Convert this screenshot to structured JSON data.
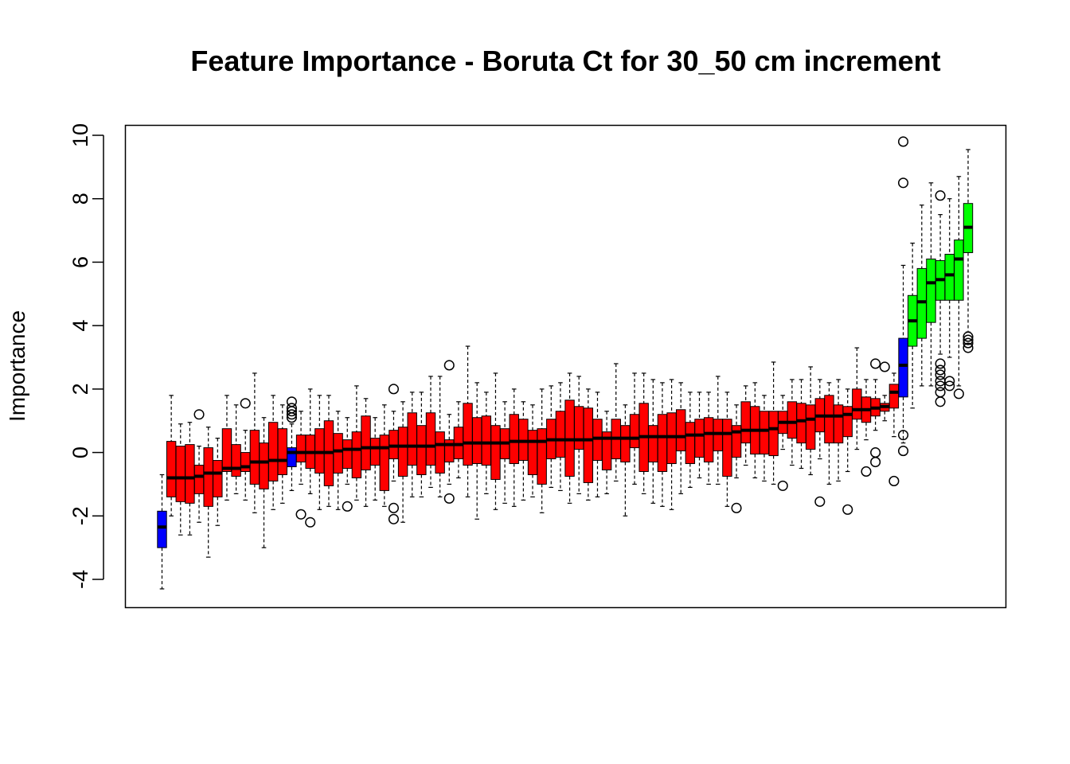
{
  "chart_data": {
    "type": "boxplot",
    "title": "Feature Importance - Boruta Ct for 30_50 cm increment",
    "xlabel": "",
    "ylabel": "Importance",
    "ylim": [
      -4.9,
      10.3
    ],
    "yticks": [
      -4,
      -2,
      0,
      2,
      4,
      6,
      8,
      10
    ],
    "grid": false,
    "legend": "none",
    "colors": {
      "rejected": "#ff0000",
      "shadow": "#0000ff",
      "confirmed": "#00ff00"
    },
    "boxes": [
      {
        "q1": -3.0,
        "median": -2.35,
        "q3": -1.85,
        "lower": -4.3,
        "upper": -0.7,
        "group": "shadow",
        "outliers": []
      },
      {
        "q1": -1.4,
        "median": -0.8,
        "q3": 0.35,
        "lower": -2.0,
        "upper": 1.8,
        "group": "rejected",
        "outliers": []
      },
      {
        "q1": -1.55,
        "median": -0.8,
        "q3": 0.2,
        "lower": -2.6,
        "upper": 0.9,
        "group": "rejected",
        "outliers": []
      },
      {
        "q1": -1.6,
        "median": -0.8,
        "q3": 0.25,
        "lower": -2.6,
        "upper": 0.95,
        "group": "rejected",
        "outliers": []
      },
      {
        "q1": -1.3,
        "median": -0.75,
        "q3": -0.4,
        "lower": -2.2,
        "upper": 0.2,
        "group": "rejected",
        "outliers": [
          1.2
        ]
      },
      {
        "q1": -1.7,
        "median": -0.65,
        "q3": 0.15,
        "lower": -3.3,
        "upper": 0.8,
        "group": "rejected",
        "outliers": []
      },
      {
        "q1": -1.4,
        "median": -0.65,
        "q3": -0.25,
        "lower": -2.3,
        "upper": 0.45,
        "group": "rejected",
        "outliers": []
      },
      {
        "q1": -0.6,
        "median": -0.5,
        "q3": 0.75,
        "lower": -1.5,
        "upper": 1.8,
        "group": "rejected",
        "outliers": []
      },
      {
        "q1": -0.75,
        "median": -0.5,
        "q3": 0.25,
        "lower": -1.3,
        "upper": 1.5,
        "group": "rejected",
        "outliers": []
      },
      {
        "q1": -0.6,
        "median": -0.45,
        "q3": 0.0,
        "lower": -1.5,
        "upper": 0.7,
        "group": "rejected",
        "outliers": [
          1.55
        ]
      },
      {
        "q1": -1.0,
        "median": -0.3,
        "q3": 0.7,
        "lower": -1.9,
        "upper": 2.5,
        "group": "rejected",
        "outliers": []
      },
      {
        "q1": -1.15,
        "median": -0.3,
        "q3": 0.3,
        "lower": -3.0,
        "upper": 1.1,
        "group": "rejected",
        "outliers": []
      },
      {
        "q1": -0.9,
        "median": -0.25,
        "q3": 0.95,
        "lower": -1.8,
        "upper": 1.8,
        "group": "rejected",
        "outliers": []
      },
      {
        "q1": -0.7,
        "median": -0.25,
        "q3": 0.75,
        "lower": -1.6,
        "upper": 1.5,
        "group": "rejected",
        "outliers": []
      },
      {
        "q1": -0.45,
        "median": 0.0,
        "q3": 0.15,
        "lower": -1.2,
        "upper": 0.9,
        "group": "shadow",
        "outliers": [
          1.6,
          1.4,
          1.3,
          1.2,
          1.1
        ]
      },
      {
        "q1": -0.3,
        "median": 0.0,
        "q3": 0.55,
        "lower": -1.0,
        "upper": 1.3,
        "group": "rejected",
        "outliers": [
          -1.95
        ]
      },
      {
        "q1": -0.5,
        "median": 0.0,
        "q3": 0.55,
        "lower": -1.3,
        "upper": 2.0,
        "group": "rejected",
        "outliers": [
          -2.2
        ]
      },
      {
        "q1": -0.65,
        "median": 0.0,
        "q3": 0.75,
        "lower": -1.8,
        "upper": 1.8,
        "group": "rejected",
        "outliers": []
      },
      {
        "q1": -1.05,
        "median": 0.0,
        "q3": 1.0,
        "lower": -1.7,
        "upper": 1.8,
        "group": "rejected",
        "outliers": []
      },
      {
        "q1": -0.65,
        "median": 0.05,
        "q3": 0.6,
        "lower": -1.8,
        "upper": 1.3,
        "group": "rejected",
        "outliers": []
      },
      {
        "q1": -0.5,
        "median": 0.1,
        "q3": 0.4,
        "lower": -1.0,
        "upper": 1.1,
        "group": "rejected",
        "outliers": [
          -1.7
        ]
      },
      {
        "q1": -0.8,
        "median": 0.1,
        "q3": 0.65,
        "lower": -1.5,
        "upper": 2.1,
        "group": "rejected",
        "outliers": []
      },
      {
        "q1": -0.55,
        "median": 0.15,
        "q3": 1.15,
        "lower": -1.7,
        "upper": 1.7,
        "group": "rejected",
        "outliers": []
      },
      {
        "q1": -0.4,
        "median": 0.15,
        "q3": 0.45,
        "lower": -1.5,
        "upper": 1.1,
        "group": "rejected",
        "outliers": []
      },
      {
        "q1": -1.2,
        "median": 0.15,
        "q3": 0.55,
        "lower": -1.7,
        "upper": 1.5,
        "group": "rejected",
        "outliers": []
      },
      {
        "q1": -0.2,
        "median": 0.2,
        "q3": 0.7,
        "lower": -0.9,
        "upper": 1.3,
        "group": "rejected",
        "outliers": [
          2.0,
          -1.75,
          -2.1
        ]
      },
      {
        "q1": -0.75,
        "median": 0.2,
        "q3": 0.8,
        "lower": -2.2,
        "upper": 1.6,
        "group": "rejected",
        "outliers": []
      },
      {
        "q1": -0.4,
        "median": 0.2,
        "q3": 1.25,
        "lower": -1.4,
        "upper": 1.9,
        "group": "rejected",
        "outliers": []
      },
      {
        "q1": -0.7,
        "median": 0.2,
        "q3": 0.85,
        "lower": -1.4,
        "upper": 1.9,
        "group": "rejected",
        "outliers": []
      },
      {
        "q1": -0.4,
        "median": 0.2,
        "q3": 1.25,
        "lower": -1.1,
        "upper": 2.4,
        "group": "rejected",
        "outliers": []
      },
      {
        "q1": -0.65,
        "median": 0.25,
        "q3": 0.65,
        "lower": -1.4,
        "upper": 2.4,
        "group": "rejected",
        "outliers": []
      },
      {
        "q1": -0.3,
        "median": 0.25,
        "q3": 0.4,
        "lower": -1.0,
        "upper": 1.2,
        "group": "rejected",
        "outliers": [
          2.75,
          -1.45
        ]
      },
      {
        "q1": -0.2,
        "median": 0.25,
        "q3": 0.8,
        "lower": -0.8,
        "upper": 1.6,
        "group": "rejected",
        "outliers": []
      },
      {
        "q1": -0.4,
        "median": 0.3,
        "q3": 1.55,
        "lower": -1.4,
        "upper": 3.35,
        "group": "rejected",
        "outliers": []
      },
      {
        "q1": -0.35,
        "median": 0.3,
        "q3": 1.1,
        "lower": -2.1,
        "upper": 2.2,
        "group": "rejected",
        "outliers": []
      },
      {
        "q1": -0.4,
        "median": 0.3,
        "q3": 1.15,
        "lower": -1.3,
        "upper": 1.9,
        "group": "rejected",
        "outliers": []
      },
      {
        "q1": -0.85,
        "median": 0.3,
        "q3": 0.85,
        "lower": -1.8,
        "upper": 2.5,
        "group": "rejected",
        "outliers": []
      },
      {
        "q1": -0.2,
        "median": 0.3,
        "q3": 0.75,
        "lower": -1.6,
        "upper": 1.6,
        "group": "rejected",
        "outliers": []
      },
      {
        "q1": -0.35,
        "median": 0.35,
        "q3": 1.2,
        "lower": -1.7,
        "upper": 2.0,
        "group": "rejected",
        "outliers": []
      },
      {
        "q1": -0.25,
        "median": 0.35,
        "q3": 1.05,
        "lower": -1.5,
        "upper": 1.6,
        "group": "rejected",
        "outliers": []
      },
      {
        "q1": -0.7,
        "median": 0.35,
        "q3": 0.7,
        "lower": -1.4,
        "upper": 1.5,
        "group": "rejected",
        "outliers": []
      },
      {
        "q1": -1.0,
        "median": 0.35,
        "q3": 0.75,
        "lower": -1.9,
        "upper": 2.0,
        "group": "rejected",
        "outliers": []
      },
      {
        "q1": -0.2,
        "median": 0.4,
        "q3": 1.05,
        "lower": -1.1,
        "upper": 2.1,
        "group": "rejected",
        "outliers": []
      },
      {
        "q1": -0.15,
        "median": 0.4,
        "q3": 1.3,
        "lower": -1.2,
        "upper": 2.2,
        "group": "rejected",
        "outliers": []
      },
      {
        "q1": -0.75,
        "median": 0.4,
        "q3": 1.65,
        "lower": -1.6,
        "upper": 2.5,
        "group": "rejected",
        "outliers": []
      },
      {
        "q1": 0.1,
        "median": 0.4,
        "q3": 1.45,
        "lower": -1.3,
        "upper": 2.4,
        "group": "rejected",
        "outliers": []
      },
      {
        "q1": -0.95,
        "median": 0.4,
        "q3": 1.4,
        "lower": -1.5,
        "upper": 2.0,
        "group": "rejected",
        "outliers": []
      },
      {
        "q1": -0.25,
        "median": 0.45,
        "q3": 1.05,
        "lower": -1.4,
        "upper": 1.9,
        "group": "rejected",
        "outliers": []
      },
      {
        "q1": -0.55,
        "median": 0.45,
        "q3": 0.65,
        "lower": -1.3,
        "upper": 1.3,
        "group": "rejected",
        "outliers": []
      },
      {
        "q1": -0.2,
        "median": 0.45,
        "q3": 1.05,
        "lower": -0.9,
        "upper": 2.8,
        "group": "rejected",
        "outliers": []
      },
      {
        "q1": -0.3,
        "median": 0.45,
        "q3": 0.85,
        "lower": -2.0,
        "upper": 1.5,
        "group": "rejected",
        "outliers": []
      },
      {
        "q1": 0.15,
        "median": 0.45,
        "q3": 1.2,
        "lower": -1.0,
        "upper": 2.5,
        "group": "rejected",
        "outliers": []
      },
      {
        "q1": -0.6,
        "median": 0.5,
        "q3": 1.55,
        "lower": -1.3,
        "upper": 2.5,
        "group": "rejected",
        "outliers": []
      },
      {
        "q1": -0.3,
        "median": 0.5,
        "q3": 0.85,
        "lower": -1.6,
        "upper": 2.3,
        "group": "rejected",
        "outliers": []
      },
      {
        "q1": -0.6,
        "median": 0.5,
        "q3": 1.2,
        "lower": -1.7,
        "upper": 2.2,
        "group": "rejected",
        "outliers": []
      },
      {
        "q1": -0.35,
        "median": 0.5,
        "q3": 1.25,
        "lower": -1.8,
        "upper": 2.3,
        "group": "rejected",
        "outliers": []
      },
      {
        "q1": 0.05,
        "median": 0.5,
        "q3": 1.35,
        "lower": -1.3,
        "upper": 2.2,
        "group": "rejected",
        "outliers": []
      },
      {
        "q1": -0.35,
        "median": 0.55,
        "q3": 0.95,
        "lower": -1.1,
        "upper": 1.9,
        "group": "rejected",
        "outliers": []
      },
      {
        "q1": -0.15,
        "median": 0.55,
        "q3": 1.05,
        "lower": -0.8,
        "upper": 1.9,
        "group": "rejected",
        "outliers": []
      },
      {
        "q1": -0.3,
        "median": 0.6,
        "q3": 1.1,
        "lower": -1.0,
        "upper": 1.9,
        "group": "rejected",
        "outliers": []
      },
      {
        "q1": 0.05,
        "median": 0.6,
        "q3": 1.05,
        "lower": -1.0,
        "upper": 2.4,
        "group": "rejected",
        "outliers": []
      },
      {
        "q1": -0.75,
        "median": 0.6,
        "q3": 1.05,
        "lower": -1.7,
        "upper": 1.9,
        "group": "rejected",
        "outliers": []
      },
      {
        "q1": -0.15,
        "median": 0.65,
        "q3": 0.85,
        "lower": -0.8,
        "upper": 1.5,
        "group": "rejected",
        "outliers": [
          -1.75
        ]
      },
      {
        "q1": 0.3,
        "median": 0.7,
        "q3": 1.6,
        "lower": -0.4,
        "upper": 2.1,
        "group": "rejected",
        "outliers": []
      },
      {
        "q1": -0.05,
        "median": 0.7,
        "q3": 1.45,
        "lower": -0.8,
        "upper": 2.2,
        "group": "rejected",
        "outliers": []
      },
      {
        "q1": -0.05,
        "median": 0.7,
        "q3": 1.3,
        "lower": -0.9,
        "upper": 1.8,
        "group": "rejected",
        "outliers": []
      },
      {
        "q1": -0.1,
        "median": 0.75,
        "q3": 1.3,
        "lower": -1.0,
        "upper": 2.85,
        "group": "rejected",
        "outliers": []
      },
      {
        "q1": 0.6,
        "median": 0.95,
        "q3": 1.3,
        "lower": 0.1,
        "upper": 1.8,
        "group": "rejected",
        "outliers": [
          -1.05
        ]
      },
      {
        "q1": 0.45,
        "median": 0.95,
        "q3": 1.6,
        "lower": -0.4,
        "upper": 2.3,
        "group": "rejected",
        "outliers": []
      },
      {
        "q1": 0.3,
        "median": 1.0,
        "q3": 1.55,
        "lower": -0.5,
        "upper": 2.3,
        "group": "rejected",
        "outliers": []
      },
      {
        "q1": 0.1,
        "median": 1.05,
        "q3": 1.5,
        "lower": -0.7,
        "upper": 2.7,
        "group": "rejected",
        "outliers": []
      },
      {
        "q1": 0.65,
        "median": 1.15,
        "q3": 1.7,
        "lower": -0.2,
        "upper": 2.3,
        "group": "rejected",
        "outliers": [
          -1.55
        ]
      },
      {
        "q1": 0.3,
        "median": 1.15,
        "q3": 1.8,
        "lower": -1.0,
        "upper": 2.2,
        "group": "rejected",
        "outliers": []
      },
      {
        "q1": 0.3,
        "median": 1.15,
        "q3": 1.5,
        "lower": -0.9,
        "upper": 2.3,
        "group": "rejected",
        "outliers": []
      },
      {
        "q1": 0.5,
        "median": 1.2,
        "q3": 1.45,
        "lower": -0.6,
        "upper": 2.0,
        "group": "rejected",
        "outliers": [
          -1.8
        ]
      },
      {
        "q1": 1.05,
        "median": 1.35,
        "q3": 2.0,
        "lower": 0.1,
        "upper": 3.3,
        "group": "rejected",
        "outliers": []
      },
      {
        "q1": 0.95,
        "median": 1.35,
        "q3": 1.75,
        "lower": 0.4,
        "upper": 2.3,
        "group": "rejected",
        "outliers": [
          -0.6
        ]
      },
      {
        "q1": 1.15,
        "median": 1.4,
        "q3": 1.7,
        "lower": 0.7,
        "upper": 2.3,
        "group": "rejected",
        "outliers": [
          2.8,
          0.0,
          -0.3
        ]
      },
      {
        "q1": 1.3,
        "median": 1.45,
        "q3": 1.55,
        "lower": 1.0,
        "upper": 1.8,
        "group": "rejected",
        "outliers": [
          2.7
        ]
      },
      {
        "q1": 1.4,
        "median": 1.9,
        "q3": 2.15,
        "lower": 0.5,
        "upper": 2.5,
        "group": "rejected",
        "outliers": [
          -0.9
        ]
      },
      {
        "q1": 1.75,
        "median": 2.75,
        "q3": 3.6,
        "lower": 0.3,
        "upper": 5.9,
        "group": "shadow",
        "outliers": [
          9.8,
          8.5,
          0.55,
          0.05
        ]
      },
      {
        "q1": 3.35,
        "median": 4.15,
        "q3": 4.95,
        "lower": 1.4,
        "upper": 6.6,
        "group": "confirmed",
        "outliers": []
      },
      {
        "q1": 3.6,
        "median": 4.75,
        "q3": 5.8,
        "lower": 2.1,
        "upper": 7.8,
        "group": "confirmed",
        "outliers": []
      },
      {
        "q1": 4.1,
        "median": 5.35,
        "q3": 6.1,
        "lower": 2.1,
        "upper": 8.5,
        "group": "confirmed",
        "outliers": []
      },
      {
        "q1": 4.8,
        "median": 5.45,
        "q3": 6.05,
        "lower": 3.1,
        "upper": 7.5,
        "group": "confirmed",
        "outliers": [
          8.1,
          2.8,
          2.6,
          2.45,
          2.25,
          2.1,
          1.9,
          1.6
        ]
      },
      {
        "q1": 4.8,
        "median": 5.6,
        "q3": 6.25,
        "lower": 3.0,
        "upper": 8.0,
        "group": "confirmed",
        "outliers": [
          2.25,
          2.1
        ]
      },
      {
        "q1": 4.8,
        "median": 6.1,
        "q3": 6.7,
        "lower": 2.1,
        "upper": 8.7,
        "group": "confirmed",
        "outliers": [
          1.85
        ]
      },
      {
        "q1": 6.3,
        "median": 7.1,
        "q3": 7.85,
        "lower": 3.8,
        "upper": 9.55,
        "group": "confirmed",
        "outliers": [
          3.65,
          3.55,
          3.45,
          3.3
        ]
      }
    ]
  }
}
